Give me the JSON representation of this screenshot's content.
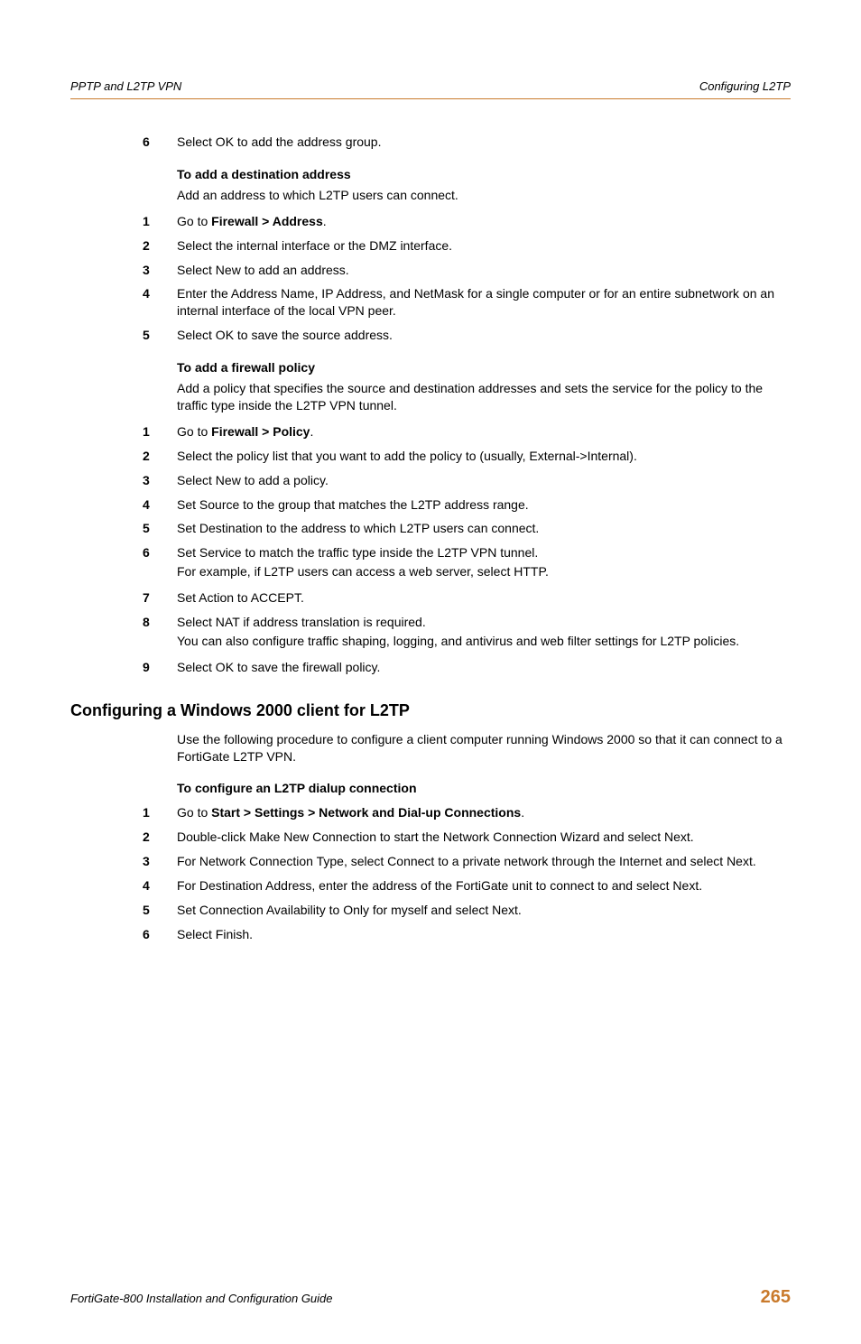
{
  "colors": {
    "accent": "#c97a2c",
    "text": "#000000",
    "background": "#ffffff"
  },
  "typography": {
    "body_font": "Arial",
    "body_size_pt": 10.5,
    "heading_size_pt": 14,
    "footer_num_size_pt": 15
  },
  "header": {
    "left": "PPTP and L2TP VPN",
    "right": "Configuring L2TP"
  },
  "leading_step": {
    "num": "6",
    "text": "Select OK to add the address group."
  },
  "dest_addr": {
    "heading": "To add a destination address",
    "intro": "Add an address to which L2TP users can connect.",
    "steps": [
      {
        "num": "1",
        "pre": "Go to ",
        "bold": "Firewall > Address",
        "post": "."
      },
      {
        "num": "2",
        "text": "Select the internal interface or the DMZ interface."
      },
      {
        "num": "3",
        "text": "Select New to add an address."
      },
      {
        "num": "4",
        "text": "Enter the Address Name, IP Address, and NetMask for a single computer or for an entire subnetwork on an internal interface of the local VPN peer."
      },
      {
        "num": "5",
        "text": "Select OK to save the source address."
      }
    ]
  },
  "fw_policy": {
    "heading": "To add a firewall policy",
    "intro": "Add a policy that specifies the source and destination addresses and sets the service for the policy to the traffic type inside the L2TP VPN tunnel.",
    "steps": [
      {
        "num": "1",
        "pre": "Go to ",
        "bold": "Firewall > Policy",
        "post": "."
      },
      {
        "num": "2",
        "text": "Select the policy list that you want to add the policy to (usually, External->Internal)."
      },
      {
        "num": "3",
        "text": "Select New to add a policy."
      },
      {
        "num": "4",
        "text": "Set Source to the group that matches the L2TP address range."
      },
      {
        "num": "5",
        "text": "Set Destination to the address to which L2TP users can connect."
      },
      {
        "num": "6",
        "line1": "Set Service to match the traffic type inside the L2TP VPN tunnel.",
        "line2": "For example, if L2TP users can access a web server, select HTTP."
      },
      {
        "num": "7",
        "text": "Set Action to ACCEPT."
      },
      {
        "num": "8",
        "line1": "Select NAT if address translation is required.",
        "line2": "You can also configure traffic shaping, logging, and antivirus and web filter settings for L2TP policies."
      },
      {
        "num": "9",
        "text": "Select OK to save the firewall policy."
      }
    ]
  },
  "win2k": {
    "title": "Configuring a Windows 2000 client for L2TP",
    "intro": "Use the following procedure to configure a client computer running Windows 2000 so that it can connect to a FortiGate L2TP VPN.",
    "sub_heading": "To configure an L2TP dialup connection",
    "steps": [
      {
        "num": "1",
        "pre": "Go to ",
        "bold": "Start > Settings > Network and Dial-up Connections",
        "post": "."
      },
      {
        "num": "2",
        "text": "Double-click Make New Connection to start the Network Connection Wizard and select Next."
      },
      {
        "num": "3",
        "text": "For Network Connection Type, select Connect to a private network through the Internet and select Next."
      },
      {
        "num": "4",
        "text": "For Destination Address, enter the address of the FortiGate unit to connect to and select Next."
      },
      {
        "num": "5",
        "text": "Set Connection Availability to Only for myself and select Next."
      },
      {
        "num": "6",
        "text": "Select Finish."
      }
    ]
  },
  "footer": {
    "left": "FortiGate-800 Installation and Configuration Guide",
    "page": "265"
  }
}
